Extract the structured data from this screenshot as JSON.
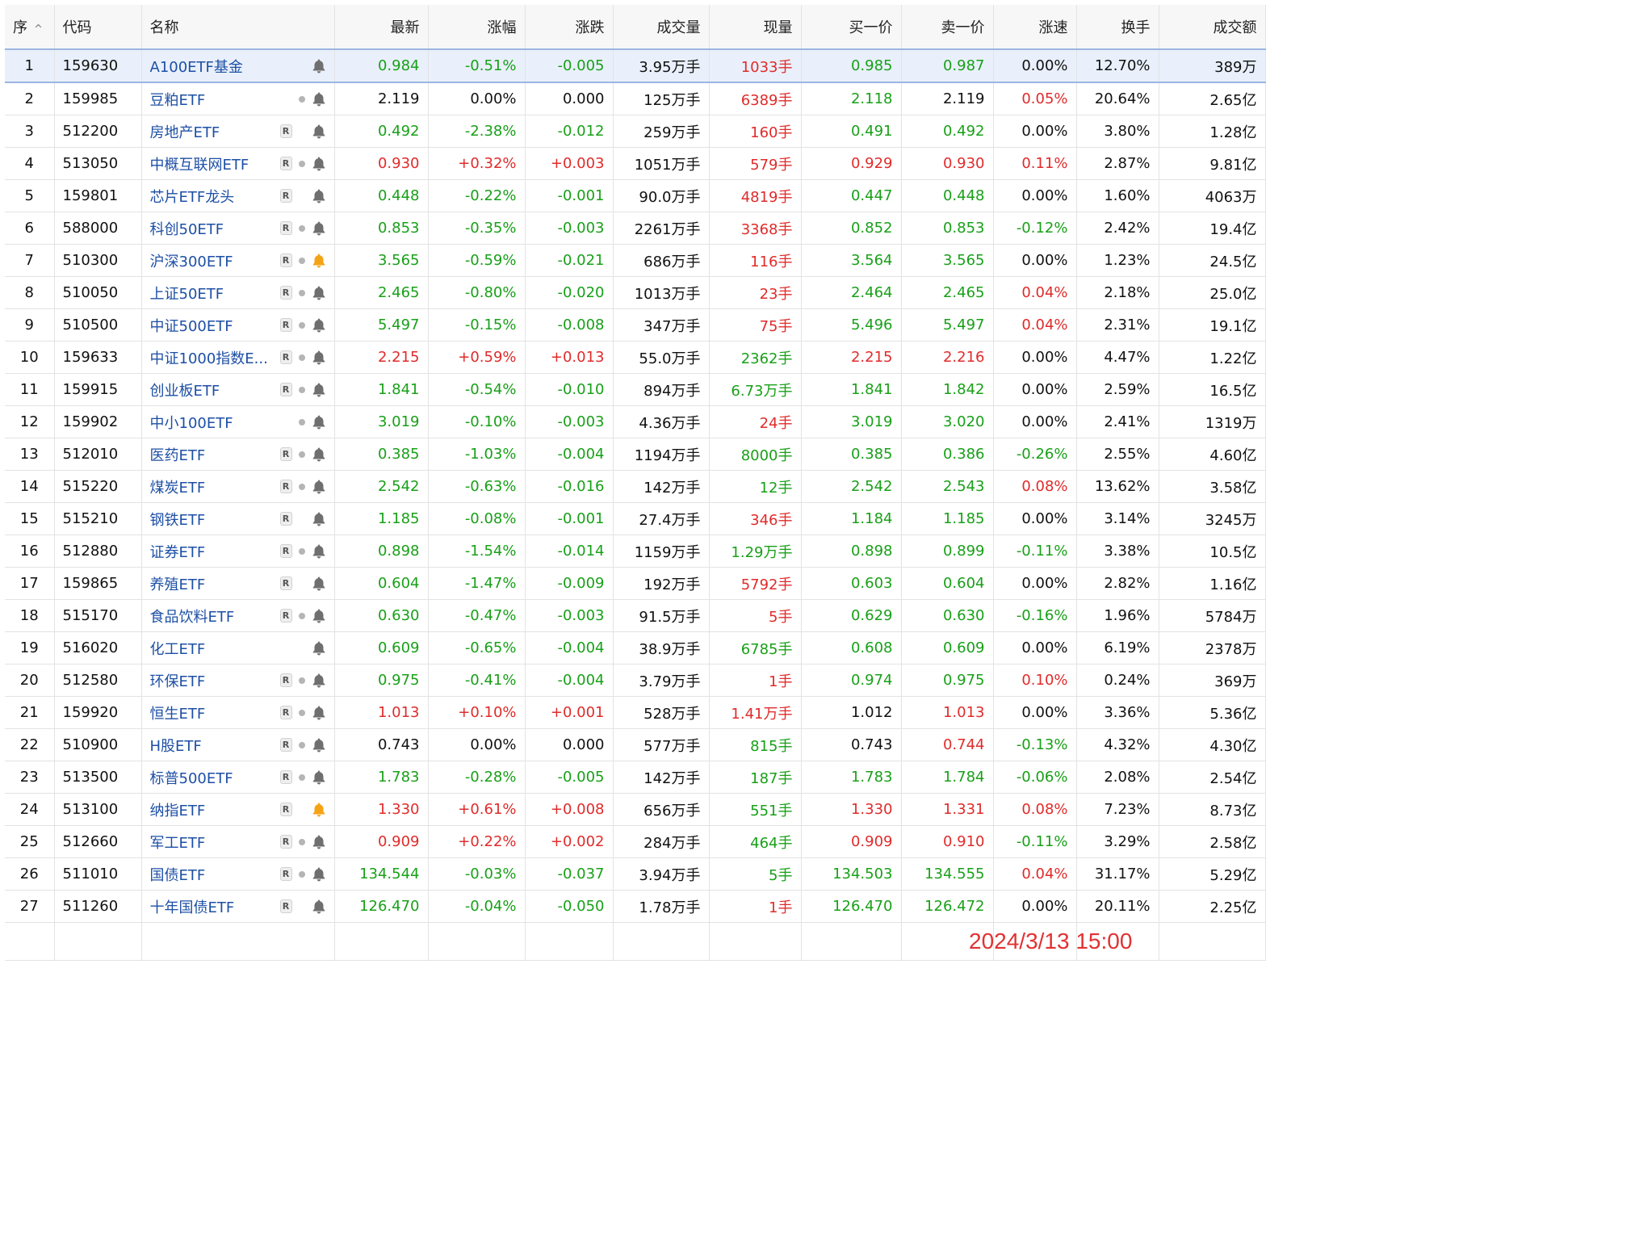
{
  "colors": {
    "up": "#e02b2b",
    "down": "#18a018",
    "flat": "#111111",
    "name_link": "#1d4fa5",
    "bell_gray": "#6f6f6f",
    "bell_orange": "#f5a316",
    "selected_row": "#e9f0fb"
  },
  "headers": {
    "seq": "序",
    "code": "代码",
    "name": "名称",
    "latest": "最新",
    "pct": "涨幅",
    "change": "涨跌",
    "volume": "成交量",
    "current": "现量",
    "bid1": "买一价",
    "ask1": "卖一价",
    "speed": "涨速",
    "turnover": "换手",
    "amount": "成交额"
  },
  "sort_indicator": "^",
  "timestamp": "2024/3/13 15:00",
  "rows": [
    {
      "seq": "1",
      "code": "159630",
      "name": "A100ETF基金",
      "r": false,
      "dot": false,
      "bell": "gray",
      "latest": "0.984",
      "latest_c": "green",
      "pct": "-0.51%",
      "pct_c": "green",
      "change": "-0.005",
      "change_c": "green",
      "volume": "3.95万手",
      "current": "1033手",
      "current_c": "red",
      "bid1": "0.985",
      "bid1_c": "green",
      "ask1": "0.987",
      "ask1_c": "green",
      "speed": "0.00%",
      "speed_c": "blk",
      "turnover": "12.70%",
      "amount": "389万"
    },
    {
      "seq": "2",
      "code": "159985",
      "name": "豆粕ETF",
      "r": false,
      "dot": true,
      "bell": "gray",
      "latest": "2.119",
      "latest_c": "blk",
      "pct": "0.00%",
      "pct_c": "blk",
      "change": "0.000",
      "change_c": "blk",
      "volume": "125万手",
      "current": "6389手",
      "current_c": "red",
      "bid1": "2.118",
      "bid1_c": "green",
      "ask1": "2.119",
      "ask1_c": "blk",
      "speed": "0.05%",
      "speed_c": "red",
      "turnover": "20.64%",
      "amount": "2.65亿"
    },
    {
      "seq": "3",
      "code": "512200",
      "name": "房地产ETF",
      "r": true,
      "dot": false,
      "bell": "gray",
      "latest": "0.492",
      "latest_c": "green",
      "pct": "-2.38%",
      "pct_c": "green",
      "change": "-0.012",
      "change_c": "green",
      "volume": "259万手",
      "current": "160手",
      "current_c": "red",
      "bid1": "0.491",
      "bid1_c": "green",
      "ask1": "0.492",
      "ask1_c": "green",
      "speed": "0.00%",
      "speed_c": "blk",
      "turnover": "3.80%",
      "amount": "1.28亿"
    },
    {
      "seq": "4",
      "code": "513050",
      "name": "中概互联网ETF",
      "r": true,
      "dot": true,
      "bell": "gray",
      "latest": "0.930",
      "latest_c": "red",
      "pct": "+0.32%",
      "pct_c": "red",
      "change": "+0.003",
      "change_c": "red",
      "volume": "1051万手",
      "current": "579手",
      "current_c": "red",
      "bid1": "0.929",
      "bid1_c": "red",
      "ask1": "0.930",
      "ask1_c": "red",
      "speed": "0.11%",
      "speed_c": "red",
      "turnover": "2.87%",
      "amount": "9.81亿"
    },
    {
      "seq": "5",
      "code": "159801",
      "name": "芯片ETF龙头",
      "r": true,
      "dot": false,
      "bell": "gray",
      "latest": "0.448",
      "latest_c": "green",
      "pct": "-0.22%",
      "pct_c": "green",
      "change": "-0.001",
      "change_c": "green",
      "volume": "90.0万手",
      "current": "4819手",
      "current_c": "red",
      "bid1": "0.447",
      "bid1_c": "green",
      "ask1": "0.448",
      "ask1_c": "green",
      "speed": "0.00%",
      "speed_c": "blk",
      "turnover": "1.60%",
      "amount": "4063万"
    },
    {
      "seq": "6",
      "code": "588000",
      "name": "科创50ETF",
      "r": true,
      "dot": true,
      "bell": "gray",
      "latest": "0.853",
      "latest_c": "green",
      "pct": "-0.35%",
      "pct_c": "green",
      "change": "-0.003",
      "change_c": "green",
      "volume": "2261万手",
      "current": "3368手",
      "current_c": "red",
      "bid1": "0.852",
      "bid1_c": "green",
      "ask1": "0.853",
      "ask1_c": "green",
      "speed": "-0.12%",
      "speed_c": "green",
      "turnover": "2.42%",
      "amount": "19.4亿"
    },
    {
      "seq": "7",
      "code": "510300",
      "name": "沪深300ETF",
      "r": true,
      "dot": true,
      "bell": "orange",
      "latest": "3.565",
      "latest_c": "green",
      "pct": "-0.59%",
      "pct_c": "green",
      "change": "-0.021",
      "change_c": "green",
      "volume": "686万手",
      "current": "116手",
      "current_c": "red",
      "bid1": "3.564",
      "bid1_c": "green",
      "ask1": "3.565",
      "ask1_c": "green",
      "speed": "0.00%",
      "speed_c": "blk",
      "turnover": "1.23%",
      "amount": "24.5亿"
    },
    {
      "seq": "8",
      "code": "510050",
      "name": "上证50ETF",
      "r": true,
      "dot": true,
      "bell": "gray",
      "latest": "2.465",
      "latest_c": "green",
      "pct": "-0.80%",
      "pct_c": "green",
      "change": "-0.020",
      "change_c": "green",
      "volume": "1013万手",
      "current": "23手",
      "current_c": "red",
      "bid1": "2.464",
      "bid1_c": "green",
      "ask1": "2.465",
      "ask1_c": "green",
      "speed": "0.04%",
      "speed_c": "red",
      "turnover": "2.18%",
      "amount": "25.0亿"
    },
    {
      "seq": "9",
      "code": "510500",
      "name": "中证500ETF",
      "r": true,
      "dot": true,
      "bell": "gray",
      "latest": "5.497",
      "latest_c": "green",
      "pct": "-0.15%",
      "pct_c": "green",
      "change": "-0.008",
      "change_c": "green",
      "volume": "347万手",
      "current": "75手",
      "current_c": "red",
      "bid1": "5.496",
      "bid1_c": "green",
      "ask1": "5.497",
      "ask1_c": "green",
      "speed": "0.04%",
      "speed_c": "red",
      "turnover": "2.31%",
      "amount": "19.1亿"
    },
    {
      "seq": "10",
      "code": "159633",
      "name": "中证1000指数E...",
      "r": true,
      "dot": true,
      "bell": "gray",
      "latest": "2.215",
      "latest_c": "red",
      "pct": "+0.59%",
      "pct_c": "red",
      "change": "+0.013",
      "change_c": "red",
      "volume": "55.0万手",
      "current": "2362手",
      "current_c": "green",
      "bid1": "2.215",
      "bid1_c": "red",
      "ask1": "2.216",
      "ask1_c": "red",
      "speed": "0.00%",
      "speed_c": "blk",
      "turnover": "4.47%",
      "amount": "1.22亿"
    },
    {
      "seq": "11",
      "code": "159915",
      "name": "创业板ETF",
      "r": true,
      "dot": true,
      "bell": "gray",
      "latest": "1.841",
      "latest_c": "green",
      "pct": "-0.54%",
      "pct_c": "green",
      "change": "-0.010",
      "change_c": "green",
      "volume": "894万手",
      "current": "6.73万手",
      "current_c": "green",
      "bid1": "1.841",
      "bid1_c": "green",
      "ask1": "1.842",
      "ask1_c": "green",
      "speed": "0.00%",
      "speed_c": "blk",
      "turnover": "2.59%",
      "amount": "16.5亿"
    },
    {
      "seq": "12",
      "code": "159902",
      "name": "中小100ETF",
      "r": false,
      "dot": true,
      "bell": "gray",
      "latest": "3.019",
      "latest_c": "green",
      "pct": "-0.10%",
      "pct_c": "green",
      "change": "-0.003",
      "change_c": "green",
      "volume": "4.36万手",
      "current": "24手",
      "current_c": "red",
      "bid1": "3.019",
      "bid1_c": "green",
      "ask1": "3.020",
      "ask1_c": "green",
      "speed": "0.00%",
      "speed_c": "blk",
      "turnover": "2.41%",
      "amount": "1319万"
    },
    {
      "seq": "13",
      "code": "512010",
      "name": "医药ETF",
      "r": true,
      "dot": true,
      "bell": "gray",
      "latest": "0.385",
      "latest_c": "green",
      "pct": "-1.03%",
      "pct_c": "green",
      "change": "-0.004",
      "change_c": "green",
      "volume": "1194万手",
      "current": "8000手",
      "current_c": "green",
      "bid1": "0.385",
      "bid1_c": "green",
      "ask1": "0.386",
      "ask1_c": "green",
      "speed": "-0.26%",
      "speed_c": "green",
      "turnover": "2.55%",
      "amount": "4.60亿"
    },
    {
      "seq": "14",
      "code": "515220",
      "name": "煤炭ETF",
      "r": true,
      "dot": true,
      "bell": "gray",
      "latest": "2.542",
      "latest_c": "green",
      "pct": "-0.63%",
      "pct_c": "green",
      "change": "-0.016",
      "change_c": "green",
      "volume": "142万手",
      "current": "12手",
      "current_c": "green",
      "bid1": "2.542",
      "bid1_c": "green",
      "ask1": "2.543",
      "ask1_c": "green",
      "speed": "0.08%",
      "speed_c": "red",
      "turnover": "13.62%",
      "amount": "3.58亿"
    },
    {
      "seq": "15",
      "code": "515210",
      "name": "钢铁ETF",
      "r": true,
      "dot": false,
      "bell": "gray",
      "latest": "1.185",
      "latest_c": "green",
      "pct": "-0.08%",
      "pct_c": "green",
      "change": "-0.001",
      "change_c": "green",
      "volume": "27.4万手",
      "current": "346手",
      "current_c": "red",
      "bid1": "1.184",
      "bid1_c": "green",
      "ask1": "1.185",
      "ask1_c": "green",
      "speed": "0.00%",
      "speed_c": "blk",
      "turnover": "3.14%",
      "amount": "3245万"
    },
    {
      "seq": "16",
      "code": "512880",
      "name": "证券ETF",
      "r": true,
      "dot": true,
      "bell": "gray",
      "latest": "0.898",
      "latest_c": "green",
      "pct": "-1.54%",
      "pct_c": "green",
      "change": "-0.014",
      "change_c": "green",
      "volume": "1159万手",
      "current": "1.29万手",
      "current_c": "green",
      "bid1": "0.898",
      "bid1_c": "green",
      "ask1": "0.899",
      "ask1_c": "green",
      "speed": "-0.11%",
      "speed_c": "green",
      "turnover": "3.38%",
      "amount": "10.5亿"
    },
    {
      "seq": "17",
      "code": "159865",
      "name": "养殖ETF",
      "r": true,
      "dot": false,
      "bell": "gray",
      "latest": "0.604",
      "latest_c": "green",
      "pct": "-1.47%",
      "pct_c": "green",
      "change": "-0.009",
      "change_c": "green",
      "volume": "192万手",
      "current": "5792手",
      "current_c": "red",
      "bid1": "0.603",
      "bid1_c": "green",
      "ask1": "0.604",
      "ask1_c": "green",
      "speed": "0.00%",
      "speed_c": "blk",
      "turnover": "2.82%",
      "amount": "1.16亿"
    },
    {
      "seq": "18",
      "code": "515170",
      "name": "食品饮料ETF",
      "r": true,
      "dot": true,
      "bell": "gray",
      "latest": "0.630",
      "latest_c": "green",
      "pct": "-0.47%",
      "pct_c": "green",
      "change": "-0.003",
      "change_c": "green",
      "volume": "91.5万手",
      "current": "5手",
      "current_c": "red",
      "bid1": "0.629",
      "bid1_c": "green",
      "ask1": "0.630",
      "ask1_c": "green",
      "speed": "-0.16%",
      "speed_c": "green",
      "turnover": "1.96%",
      "amount": "5784万"
    },
    {
      "seq": "19",
      "code": "516020",
      "name": "化工ETF",
      "r": false,
      "dot": false,
      "bell": "gray",
      "latest": "0.609",
      "latest_c": "green",
      "pct": "-0.65%",
      "pct_c": "green",
      "change": "-0.004",
      "change_c": "green",
      "volume": "38.9万手",
      "current": "6785手",
      "current_c": "green",
      "bid1": "0.608",
      "bid1_c": "green",
      "ask1": "0.609",
      "ask1_c": "green",
      "speed": "0.00%",
      "speed_c": "blk",
      "turnover": "6.19%",
      "amount": "2378万"
    },
    {
      "seq": "20",
      "code": "512580",
      "name": "环保ETF",
      "r": true,
      "dot": true,
      "bell": "gray",
      "latest": "0.975",
      "latest_c": "green",
      "pct": "-0.41%",
      "pct_c": "green",
      "change": "-0.004",
      "change_c": "green",
      "volume": "3.79万手",
      "current": "1手",
      "current_c": "red",
      "bid1": "0.974",
      "bid1_c": "green",
      "ask1": "0.975",
      "ask1_c": "green",
      "speed": "0.10%",
      "speed_c": "red",
      "turnover": "0.24%",
      "amount": "369万"
    },
    {
      "seq": "21",
      "code": "159920",
      "name": "恒生ETF",
      "r": true,
      "dot": true,
      "bell": "gray",
      "latest": "1.013",
      "latest_c": "red",
      "pct": "+0.10%",
      "pct_c": "red",
      "change": "+0.001",
      "change_c": "red",
      "volume": "528万手",
      "current": "1.41万手",
      "current_c": "red",
      "bid1": "1.012",
      "bid1_c": "blk",
      "ask1": "1.013",
      "ask1_c": "red",
      "speed": "0.00%",
      "speed_c": "blk",
      "turnover": "3.36%",
      "amount": "5.36亿"
    },
    {
      "seq": "22",
      "code": "510900",
      "name": "H股ETF",
      "r": true,
      "dot": true,
      "bell": "gray",
      "latest": "0.743",
      "latest_c": "blk",
      "pct": "0.00%",
      "pct_c": "blk",
      "change": "0.000",
      "change_c": "blk",
      "volume": "577万手",
      "current": "815手",
      "current_c": "green",
      "bid1": "0.743",
      "bid1_c": "blk",
      "ask1": "0.744",
      "ask1_c": "red",
      "speed": "-0.13%",
      "speed_c": "green",
      "turnover": "4.32%",
      "amount": "4.30亿"
    },
    {
      "seq": "23",
      "code": "513500",
      "name": "标普500ETF",
      "r": true,
      "dot": true,
      "bell": "gray",
      "latest": "1.783",
      "latest_c": "green",
      "pct": "-0.28%",
      "pct_c": "green",
      "change": "-0.005",
      "change_c": "green",
      "volume": "142万手",
      "current": "187手",
      "current_c": "green",
      "bid1": "1.783",
      "bid1_c": "green",
      "ask1": "1.784",
      "ask1_c": "green",
      "speed": "-0.06%",
      "speed_c": "green",
      "turnover": "2.08%",
      "amount": "2.54亿"
    },
    {
      "seq": "24",
      "code": "513100",
      "name": "纳指ETF",
      "r": true,
      "dot": false,
      "bell": "orange",
      "latest": "1.330",
      "latest_c": "red",
      "pct": "+0.61%",
      "pct_c": "red",
      "change": "+0.008",
      "change_c": "red",
      "volume": "656万手",
      "current": "551手",
      "current_c": "green",
      "bid1": "1.330",
      "bid1_c": "red",
      "ask1": "1.331",
      "ask1_c": "red",
      "speed": "0.08%",
      "speed_c": "red",
      "turnover": "7.23%",
      "amount": "8.73亿"
    },
    {
      "seq": "25",
      "code": "512660",
      "name": "军工ETF",
      "r": true,
      "dot": true,
      "bell": "gray",
      "latest": "0.909",
      "latest_c": "red",
      "pct": "+0.22%",
      "pct_c": "red",
      "change": "+0.002",
      "change_c": "red",
      "volume": "284万手",
      "current": "464手",
      "current_c": "green",
      "bid1": "0.909",
      "bid1_c": "red",
      "ask1": "0.910",
      "ask1_c": "red",
      "speed": "-0.11%",
      "speed_c": "green",
      "turnover": "3.29%",
      "amount": "2.58亿"
    },
    {
      "seq": "26",
      "code": "511010",
      "name": "国债ETF",
      "r": true,
      "dot": true,
      "bell": "gray",
      "latest": "134.544",
      "latest_c": "green",
      "pct": "-0.03%",
      "pct_c": "green",
      "change": "-0.037",
      "change_c": "green",
      "volume": "3.94万手",
      "current": "5手",
      "current_c": "green",
      "bid1": "134.503",
      "bid1_c": "green",
      "ask1": "134.555",
      "ask1_c": "green",
      "speed": "0.04%",
      "speed_c": "red",
      "turnover": "31.17%",
      "amount": "5.29亿"
    },
    {
      "seq": "27",
      "code": "511260",
      "name": "十年国债ETF",
      "r": true,
      "dot": false,
      "bell": "gray",
      "latest": "126.470",
      "latest_c": "green",
      "pct": "-0.04%",
      "pct_c": "green",
      "change": "-0.050",
      "change_c": "green",
      "volume": "1.78万手",
      "current": "1手",
      "current_c": "red",
      "bid1": "126.470",
      "bid1_c": "green",
      "ask1": "126.472",
      "ask1_c": "green",
      "speed": "0.00%",
      "speed_c": "blk",
      "turnover": "20.11%",
      "amount": "2.25亿"
    }
  ]
}
